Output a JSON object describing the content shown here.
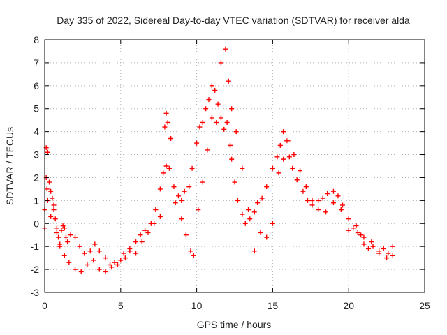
{
  "chart_data": {
    "type": "scatter",
    "title": "Day 335 of 2022, Sidereal Day-to-day VTEC variation (SDTVAR) for receiver alda",
    "xlabel": "GPS time / hours",
    "ylabel": "SDTVAR / TECUs",
    "xlim": [
      0,
      25
    ],
    "ylim": [
      -3,
      8
    ],
    "xticks": [
      "0",
      "5",
      "10",
      "15",
      "20",
      "25"
    ],
    "yticks": [
      "-3",
      "-2",
      "-1",
      "0",
      "1",
      "2",
      "3",
      "4",
      "5",
      "6",
      "7",
      "8"
    ],
    "grid": true,
    "marker": "+",
    "series": [
      {
        "name": "SDTVAR",
        "color": "#ff0000",
        "x": [
          0.0,
          0.1,
          0.15,
          0.2,
          0.3,
          0.4,
          0.5,
          0.6,
          0.7,
          0.8,
          0.9,
          1.0,
          1.1,
          1.2,
          1.3,
          1.4,
          1.5,
          1.7,
          2.0,
          2.3,
          2.6,
          3.0,
          3.3,
          3.6,
          4.0,
          4.3,
          4.6,
          5.0,
          5.3,
          5.6,
          6.0,
          6.3,
          6.6,
          7.0,
          7.3,
          7.6,
          7.8,
          8.0,
          8.2,
          8.5,
          8.8,
          9.0,
          9.2,
          9.5,
          9.7,
          10.0,
          10.2,
          10.4,
          10.6,
          10.8,
          11.0,
          11.2,
          11.4,
          11.6,
          11.8,
          12.0,
          12.2,
          12.3,
          12.5,
          12.7,
          13.0,
          13.2,
          13.5,
          13.8,
          14.0,
          14.3,
          14.6,
          15.0,
          15.3,
          15.5,
          15.7,
          15.9,
          16.1,
          16.3,
          16.6,
          17.0,
          17.3,
          17.6,
          18.0,
          18.3,
          18.6,
          19.0,
          19.3,
          19.6,
          20.0,
          20.3,
          20.6,
          20.8,
          21.0,
          21.3,
          21.6,
          22.0,
          22.3,
          22.6,
          22.9,
          0.0,
          0.1,
          0.2,
          0.4,
          0.6,
          0.8,
          1.0,
          1.3,
          1.6,
          2.0,
          2.4,
          2.8,
          3.2,
          3.6,
          4.0,
          4.4,
          4.8,
          5.2,
          5.6,
          6.0,
          6.4,
          6.8,
          7.2,
          7.6,
          7.9,
          8.0,
          8.1,
          8.3,
          8.6,
          9.0,
          9.3,
          9.6,
          9.8,
          10.1,
          10.4,
          10.7,
          11.0,
          11.3,
          11.6,
          11.9,
          12.1,
          12.3,
          12.6,
          13.0,
          13.4,
          13.8,
          14.2,
          14.6,
          15.0,
          15.4,
          15.7,
          16.0,
          16.4,
          16.8,
          17.2,
          17.6,
          18.0,
          18.5,
          19.0,
          19.5,
          20.0,
          20.5,
          21.0,
          21.5,
          22.0,
          22.5,
          22.9
        ],
        "y": [
          0.6,
          2.0,
          1.5,
          1.0,
          1.8,
          1.4,
          1.1,
          0.6,
          0.2,
          -0.2,
          -0.6,
          -0.9,
          -0.3,
          -0.1,
          -0.2,
          -0.6,
          -0.8,
          -0.5,
          -0.6,
          -1.0,
          -1.3,
          -1.2,
          -0.9,
          -1.2,
          -1.5,
          -1.8,
          -1.7,
          -1.6,
          -1.5,
          -1.2,
          -0.8,
          -0.5,
          -0.3,
          0.0,
          0.6,
          1.5,
          2.2,
          2.5,
          2.4,
          1.6,
          1.2,
          1.0,
          1.4,
          1.6,
          2.4,
          3.5,
          4.2,
          4.4,
          5.0,
          5.4,
          6.0,
          5.8,
          5.2,
          4.6,
          4.1,
          4.4,
          3.4,
          2.8,
          1.8,
          1.0,
          0.4,
          0.0,
          0.2,
          0.5,
          0.9,
          1.1,
          1.6,
          2.4,
          2.9,
          3.4,
          4.0,
          3.6,
          2.9,
          2.4,
          1.9,
          1.4,
          1.0,
          0.8,
          1.0,
          1.1,
          1.3,
          1.4,
          1.2,
          0.8,
          0.2,
          -0.2,
          -0.4,
          -0.5,
          -0.9,
          -1.1,
          -1.0,
          -1.2,
          -1.1,
          -1.3,
          -1.0,
          -0.2,
          3.3,
          3.1,
          0.3,
          0.8,
          -0.4,
          -1.0,
          -1.4,
          -1.7,
          -2.0,
          -2.1,
          -1.8,
          -1.6,
          -2.0,
          -2.1,
          -1.9,
          -1.8,
          -1.3,
          -1.1,
          -1.3,
          -0.8,
          -0.4,
          0.0,
          0.3,
          4.2,
          4.8,
          4.4,
          3.7,
          0.9,
          0.2,
          -0.5,
          -1.2,
          -1.4,
          0.6,
          1.8,
          3.2,
          4.6,
          4.4,
          7.0,
          7.6,
          6.2,
          5.0,
          4.0,
          2.4,
          0.6,
          -1.2,
          -0.4,
          -0.6,
          0.0,
          2.2,
          2.8,
          3.6,
          3.0,
          2.3,
          1.6,
          1.0,
          0.6,
          0.5,
          0.9,
          0.6,
          -0.3,
          -0.1,
          -0.6,
          -0.8,
          -1.3,
          -1.5,
          -1.4
        ]
      }
    ]
  }
}
